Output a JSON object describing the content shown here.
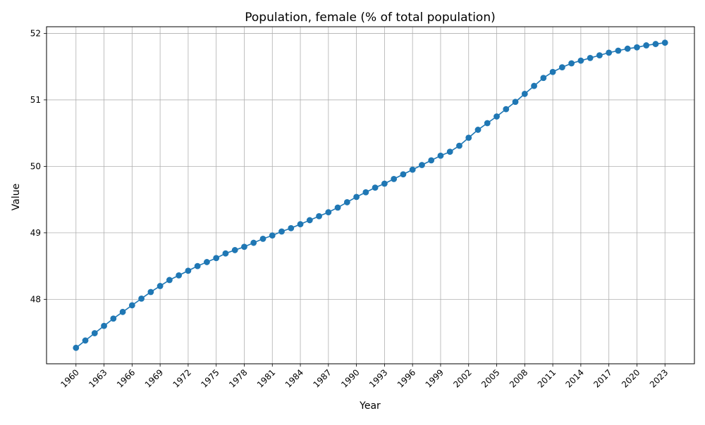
{
  "chart_data": {
    "type": "line",
    "title": "Population, female (% of total population)",
    "xlabel": "Year",
    "ylabel": "Value",
    "x": [
      1960,
      1961,
      1962,
      1963,
      1964,
      1965,
      1966,
      1967,
      1968,
      1969,
      1970,
      1971,
      1972,
      1973,
      1974,
      1975,
      1976,
      1977,
      1978,
      1979,
      1980,
      1981,
      1982,
      1983,
      1984,
      1985,
      1986,
      1987,
      1988,
      1989,
      1990,
      1991,
      1992,
      1993,
      1994,
      1995,
      1996,
      1997,
      1998,
      1999,
      2000,
      2001,
      2002,
      2003,
      2004,
      2005,
      2006,
      2007,
      2008,
      2009,
      2010,
      2011,
      2012,
      2013,
      2014,
      2015,
      2016,
      2017,
      2018,
      2019,
      2020,
      2021,
      2022,
      2023
    ],
    "x_ticks": [
      "1960",
      "1963",
      "1966",
      "1969",
      "1972",
      "1975",
      "1978",
      "1981",
      "1984",
      "1987",
      "1990",
      "1993",
      "1996",
      "1999",
      "2002",
      "2005",
      "2008",
      "2011",
      "2014",
      "2017",
      "2020",
      "2023"
    ],
    "y_ticks": [
      "48",
      "49",
      "50",
      "51",
      "52"
    ],
    "series": [
      {
        "values": [
          47.27,
          47.38,
          47.49,
          47.6,
          47.71,
          47.81,
          47.91,
          48.01,
          48.11,
          48.2,
          48.29,
          48.36,
          48.43,
          48.5,
          48.56,
          48.62,
          48.69,
          48.74,
          48.79,
          48.85,
          48.91,
          48.96,
          49.02,
          49.07,
          49.13,
          49.19,
          49.25,
          49.31,
          49.38,
          49.46,
          49.54,
          49.61,
          49.68,
          49.74,
          49.81,
          49.88,
          49.95,
          50.02,
          50.09,
          50.16,
          50.22,
          50.31,
          50.43,
          50.55,
          50.65,
          50.75,
          50.86,
          50.97,
          51.09,
          51.21,
          51.33,
          51.42,
          51.49,
          51.55,
          51.59,
          51.63,
          51.67,
          51.71,
          51.74,
          51.77,
          51.79,
          51.82,
          51.84,
          51.86
        ]
      }
    ],
    "xlim": [
      1956.85,
      2026.15
    ],
    "ylim": [
      47.03,
      52.1
    ],
    "grid": true,
    "colors": {
      "line": "#1f77b4",
      "grid": "#b0b0b0",
      "axis": "#000000"
    }
  }
}
